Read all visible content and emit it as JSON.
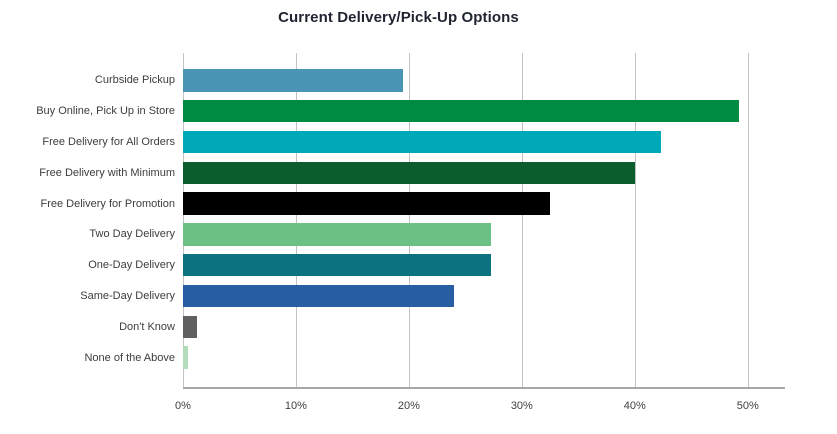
{
  "chart_data": {
    "type": "bar",
    "orientation": "horizontal",
    "title": "Current Delivery/Pick-Up Options",
    "categories": [
      "Curbside Pickup",
      "Buy Online, Pick Up in Store",
      "Free Delivery for All Orders",
      "Free Delivery with Minimum",
      "Free Delivery for Promotion",
      "Two Day Delivery",
      "One-Day Delivery",
      "Same-Day Delivery",
      "Don't Know",
      "None of the Above"
    ],
    "values": [
      19.5,
      49.2,
      42.3,
      40.0,
      32.5,
      27.3,
      27.3,
      24.0,
      1.2,
      0.4
    ],
    "colors": [
      "#4a95b5",
      "#008b42",
      "#00a9b7",
      "#0b5d2e",
      "#000000",
      "#6bc184",
      "#0c7380",
      "#275da3",
      "#606060",
      "#b2dcba"
    ],
    "x_ticks": [
      0,
      10,
      20,
      30,
      40,
      50
    ],
    "x_tick_labels": [
      "0%",
      "10%",
      "20%",
      "30%",
      "40%",
      "50%"
    ],
    "xlabel": "",
    "ylabel": "",
    "xlim": [
      0,
      53.3
    ],
    "grid": "vertical-only",
    "legend": "none"
  }
}
